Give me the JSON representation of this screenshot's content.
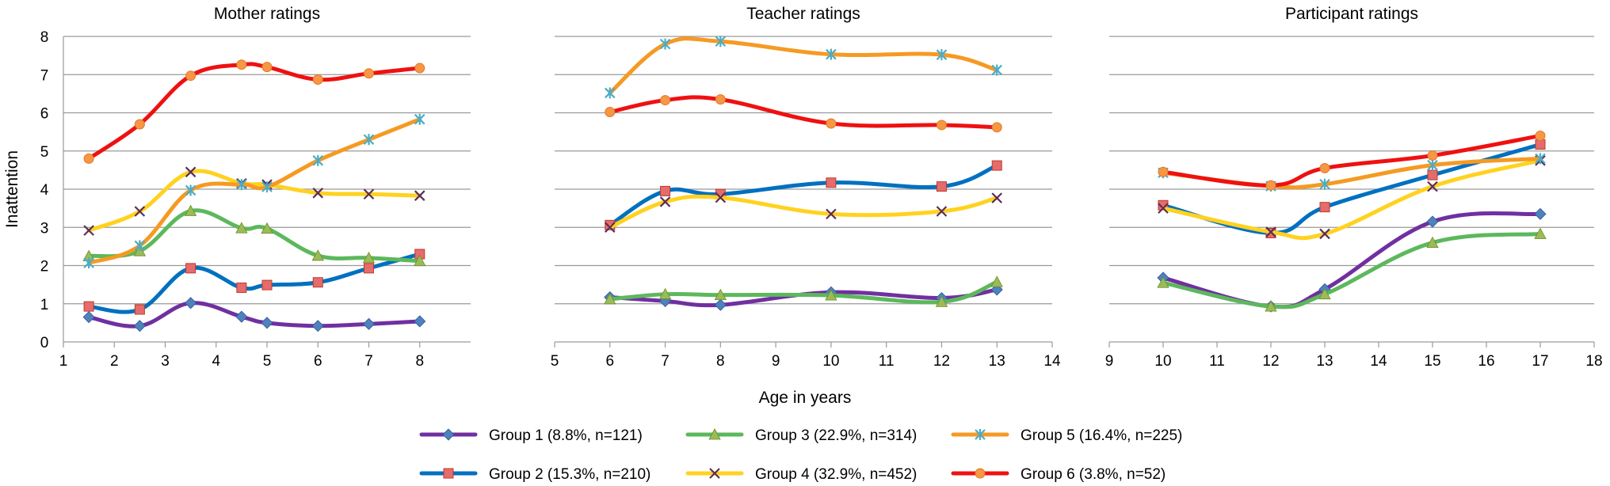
{
  "chart_data": {
    "type": "line",
    "ylabel": "Inattention",
    "xlabel": "Age in years",
    "ylim": [
      0,
      8
    ],
    "yticks": [
      0,
      1,
      2,
      3,
      4,
      5,
      6,
      7,
      8
    ],
    "grid": true,
    "legend_position": "bottom",
    "series_styles": [
      {
        "name": "Group 1 (8.8%, n=121)",
        "color": "#7030a0",
        "marker": "diamond",
        "marker_color": "#4f81bd"
      },
      {
        "name": "Group 2 (15.3%, n=210)",
        "color": "#0070c0",
        "marker": "square",
        "marker_color": "#e46c6c"
      },
      {
        "name": "Group 3 (22.9%, n=314)",
        "color": "#5cb85c",
        "marker": "triangle",
        "marker_color": "#9bbb59"
      },
      {
        "name": "Group 4 (32.9%, n=452)",
        "color": "#ffd21f",
        "marker": "x",
        "marker_color": "#5a2d5a"
      },
      {
        "name": "Group 5 (16.4%, n=225)",
        "color": "#f59a23",
        "marker": "star",
        "marker_color": "#4bacc6"
      },
      {
        "name": "Group 6 (3.8%, n=52)",
        "color": "#ee1111",
        "marker": "circle",
        "marker_color": "#f79646"
      }
    ],
    "panels": [
      {
        "title": "Mother ratings",
        "xlim": [
          1,
          9
        ],
        "xticks": [
          1,
          2,
          3,
          4,
          5,
          6,
          7,
          8
        ],
        "x": [
          1.5,
          2.5,
          3.5,
          4.5,
          5,
          6,
          7,
          8
        ],
        "series": [
          {
            "name": "Group 1 (8.8%, n=121)",
            "values": [
              0.65,
              0.42,
              1.02,
              0.66,
              0.5,
              0.42,
              0.47,
              0.54
            ]
          },
          {
            "name": "Group 2 (15.3%, n=210)",
            "values": [
              0.93,
              0.85,
              1.93,
              1.42,
              1.49,
              1.56,
              1.93,
              2.3
            ]
          },
          {
            "name": "Group 3 (22.9%, n=314)",
            "values": [
              2.25,
              2.38,
              3.43,
              2.98,
              2.97,
              2.26,
              2.2,
              2.12
            ]
          },
          {
            "name": "Group 4 (32.9%, n=452)",
            "values": [
              2.92,
              3.42,
              4.45,
              4.15,
              4.12,
              3.9,
              3.87,
              3.83
            ]
          },
          {
            "name": "Group 5 (16.4%, n=225)",
            "values": [
              2.07,
              2.52,
              3.97,
              4.12,
              4.06,
              4.75,
              5.3,
              5.83
            ]
          },
          {
            "name": "Group 6 (3.8%, n=52)",
            "values": [
              4.8,
              5.7,
              6.97,
              7.26,
              7.2,
              6.87,
              7.03,
              7.17
            ]
          }
        ]
      },
      {
        "title": "Teacher ratings",
        "xlim": [
          5,
          14
        ],
        "xticks": [
          5,
          6,
          7,
          8,
          9,
          10,
          11,
          12,
          13,
          14
        ],
        "x": [
          6,
          7,
          8,
          10,
          12,
          13
        ],
        "series": [
          {
            "name": "Group 1 (8.8%, n=121)",
            "values": [
              1.17,
              1.07,
              0.97,
              1.3,
              1.15,
              1.37
            ]
          },
          {
            "name": "Group 2 (15.3%, n=210)",
            "values": [
              3.06,
              3.95,
              3.87,
              4.17,
              4.07,
              4.62
            ]
          },
          {
            "name": "Group 3 (22.9%, n=314)",
            "values": [
              1.12,
              1.25,
              1.23,
              1.22,
              1.05,
              1.57
            ]
          },
          {
            "name": "Group 4 (32.9%, n=452)",
            "values": [
              3.0,
              3.67,
              3.78,
              3.35,
              3.42,
              3.77
            ]
          },
          {
            "name": "Group 5 (16.4%, n=225)",
            "values": [
              6.52,
              7.8,
              7.87,
              7.53,
              7.52,
              7.12
            ]
          },
          {
            "name": "Group 6 (3.8%, n=52)",
            "values": [
              6.02,
              6.33,
              6.35,
              5.72,
              5.68,
              5.62
            ]
          }
        ]
      },
      {
        "title": "Participant ratings",
        "xlim": [
          9,
          18
        ],
        "xticks": [
          9,
          10,
          11,
          12,
          13,
          14,
          15,
          16,
          17,
          18
        ],
        "x": [
          10,
          12,
          13,
          15,
          17
        ],
        "series": [
          {
            "name": "Group 1 (8.8%, n=121)",
            "values": [
              1.68,
              0.93,
              1.38,
              3.15,
              3.35
            ]
          },
          {
            "name": "Group 2 (15.3%, n=210)",
            "values": [
              3.58,
              2.85,
              3.53,
              4.37,
              5.17
            ]
          },
          {
            "name": "Group 3 (22.9%, n=314)",
            "values": [
              1.55,
              0.93,
              1.25,
              2.6,
              2.83
            ]
          },
          {
            "name": "Group 4 (32.9%, n=452)",
            "values": [
              3.5,
              2.88,
              2.83,
              4.07,
              4.75
            ]
          },
          {
            "name": "Group 5 (16.4%, n=225)",
            "values": [
              4.43,
              4.08,
              4.13,
              4.63,
              4.8
            ]
          },
          {
            "name": "Group 6 (3.8%, n=52)",
            "values": [
              4.45,
              4.1,
              4.55,
              4.88,
              5.4
            ]
          }
        ]
      }
    ]
  }
}
